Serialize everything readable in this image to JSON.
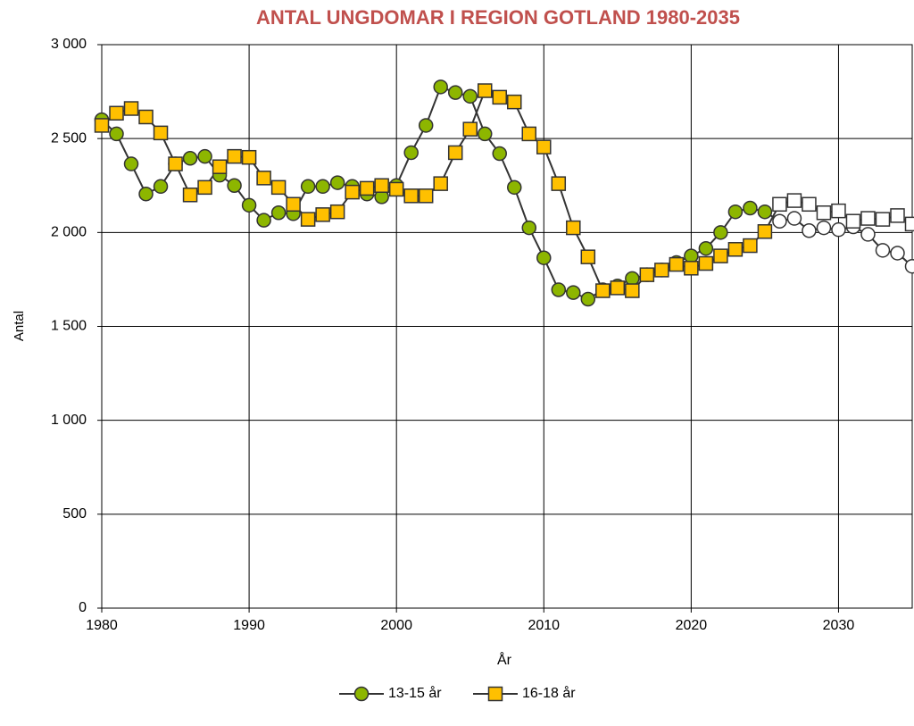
{
  "chart_data": {
    "type": "line",
    "title": "ANTAL UNGDOMAR I REGION GOTLAND 1980-2035",
    "x_label": "År",
    "y_label": "Antal",
    "x": [
      1980,
      1981,
      1982,
      1983,
      1984,
      1985,
      1986,
      1987,
      1988,
      1989,
      1990,
      1991,
      1992,
      1993,
      1994,
      1995,
      1996,
      1997,
      1998,
      1999,
      2000,
      2001,
      2002,
      2003,
      2004,
      2005,
      2006,
      2007,
      2008,
      2009,
      2010,
      2011,
      2012,
      2013,
      2014,
      2015,
      2016,
      2017,
      2018,
      2019,
      2020,
      2021,
      2022,
      2023,
      2024,
      2025,
      2026,
      2027,
      2028,
      2029,
      2030,
      2031,
      2032,
      2033,
      2034,
      2035
    ],
    "series": [
      {
        "name": "13-15 år",
        "color": "#8db600",
        "marker": "circle",
        "values": [
          2600,
          2525,
          2365,
          2205,
          2245,
          2365,
          2395,
          2405,
          2305,
          2250,
          2145,
          2065,
          2105,
          2100,
          2245,
          2245,
          2265,
          2245,
          2205,
          2190,
          2250,
          2425,
          2570,
          2775,
          2745,
          2725,
          2525,
          2420,
          2240,
          2025,
          1865,
          1695,
          1680,
          1645,
          1695,
          1715,
          1755,
          1775,
          1800,
          1840,
          1875,
          1915,
          2000,
          2110,
          2130,
          2110,
          2060,
          2075,
          2010,
          2025,
          2015,
          2030,
          1990,
          1905,
          1890,
          1820
        ]
      },
      {
        "name": "16-18 år",
        "color": "#ffc000",
        "marker": "square",
        "values": [
          2570,
          2635,
          2660,
          2615,
          2530,
          2365,
          2200,
          2240,
          2350,
          2405,
          2400,
          2290,
          2240,
          2150,
          2070,
          2095,
          2110,
          2215,
          2235,
          2250,
          2230,
          2195,
          2195,
          2260,
          2425,
          2550,
          2755,
          2720,
          2695,
          2525,
          2455,
          2260,
          2025,
          1870,
          1690,
          1705,
          1690,
          1775,
          1800,
          1830,
          1810,
          1835,
          1875,
          1910,
          1930,
          2005,
          2150,
          2170,
          2150,
          2105,
          2115,
          2060,
          2075,
          2070,
          2090,
          2045
        ]
      }
    ],
    "projection_start": 2026,
    "projection_color": "#ffffff",
    "xlim": [
      1980,
      2035
    ],
    "xticks": [
      1980,
      1990,
      2000,
      2010,
      2020,
      2030
    ],
    "ylim": [
      0,
      3000
    ],
    "yticks": [
      0,
      500,
      {
        "value": 1000,
        "label": "1 000"
      },
      {
        "value": 1500,
        "label": "1 500"
      },
      {
        "value": 2000,
        "label": "2 000"
      },
      {
        "value": 2500,
        "label": "2 500"
      },
      {
        "value": 3000,
        "label": "3 000"
      }
    ],
    "grid": true,
    "legend": "bottom"
  }
}
